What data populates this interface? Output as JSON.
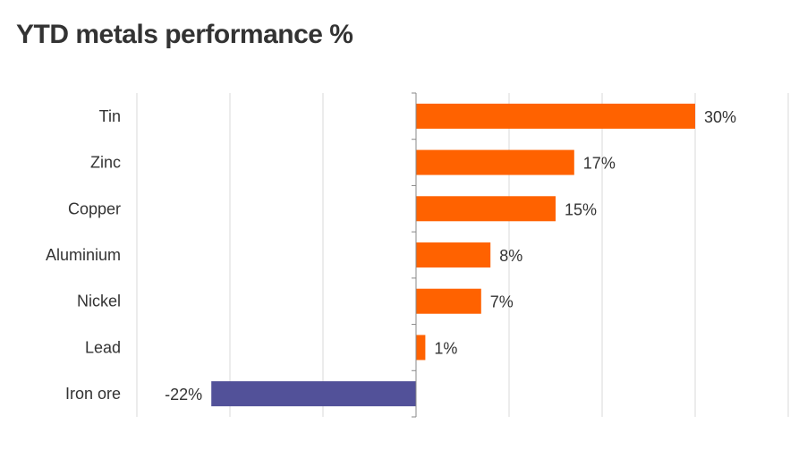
{
  "chart_data": {
    "type": "bar",
    "orientation": "horizontal",
    "title": "YTD metals performance %",
    "xlabel": "",
    "ylabel": "",
    "categories": [
      "Tin",
      "Zinc",
      "Copper",
      "Aluminium",
      "Nickel",
      "Lead",
      "Iron ore"
    ],
    "values": [
      30,
      17,
      15,
      8,
      7,
      1,
      -22
    ],
    "data_labels": [
      "30%",
      "17%",
      "15%",
      "8%",
      "7%",
      "1%",
      "-22%"
    ],
    "xlim": [
      -30,
      40
    ],
    "x_gridlines": [
      -30,
      -20,
      -10,
      0,
      10,
      20,
      30,
      40
    ],
    "grid": true,
    "legend": "none",
    "colors": {
      "positive": "#ff6200",
      "negative": "#525199",
      "grid": "#d9d9d9",
      "axis": "#888888",
      "text": "#333333"
    }
  }
}
